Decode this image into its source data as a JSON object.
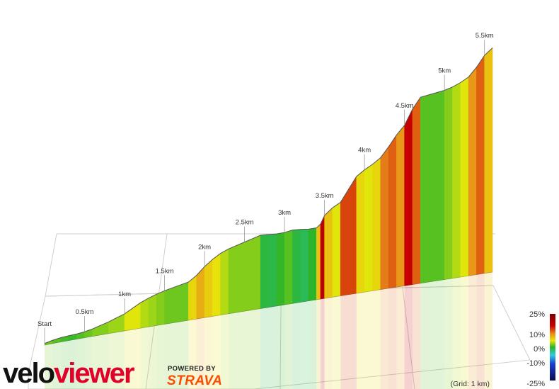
{
  "chart_data": {
    "type": "area",
    "x_unit": "km",
    "distance_markers": [
      "Start",
      "0.5km",
      "1km",
      "1.5km",
      "2km",
      "2.5km",
      "3km",
      "3.5km",
      "4km",
      "4.5km",
      "5km",
      "5.5km"
    ],
    "profile": [
      [
        0.0,
        1.5
      ],
      [
        0.1,
        3.0
      ],
      [
        0.2,
        4.0
      ],
      [
        0.3,
        4.5
      ],
      [
        0.4,
        4.8
      ],
      [
        0.5,
        5.6
      ],
      [
        0.6,
        7.0
      ],
      [
        0.7,
        9.0
      ],
      [
        0.8,
        11.0
      ],
      [
        0.9,
        13.5
      ],
      [
        1.0,
        16.0
      ],
      [
        1.1,
        20.0
      ],
      [
        1.2,
        24.0
      ],
      [
        1.3,
        27.0
      ],
      [
        1.4,
        29.5
      ],
      [
        1.5,
        31.5
      ],
      [
        1.6,
        33.0
      ],
      [
        1.7,
        34.5
      ],
      [
        1.8,
        36.0
      ],
      [
        1.9,
        41.0
      ],
      [
        2.0,
        48.0
      ],
      [
        2.1,
        53.5
      ],
      [
        2.2,
        58.0
      ],
      [
        2.3,
        61.0
      ],
      [
        2.4,
        63.0
      ],
      [
        2.5,
        65.0
      ],
      [
        2.6,
        67.0
      ],
      [
        2.7,
        69.0
      ],
      [
        2.8,
        68.5
      ],
      [
        2.9,
        67.8
      ],
      [
        3.0,
        68.0
      ],
      [
        3.1,
        69.0
      ],
      [
        3.2,
        68.5
      ],
      [
        3.3,
        67.5
      ],
      [
        3.4,
        67.5
      ],
      [
        3.45,
        70.5
      ],
      [
        3.5,
        78.0
      ],
      [
        3.6,
        84.0
      ],
      [
        3.7,
        88.0
      ],
      [
        3.8,
        99.0
      ],
      [
        3.9,
        110.0
      ],
      [
        4.0,
        115.0
      ],
      [
        4.1,
        119.0
      ],
      [
        4.2,
        124.0
      ],
      [
        4.3,
        133.0
      ],
      [
        4.4,
        143.0
      ],
      [
        4.5,
        151.0
      ],
      [
        4.6,
        165.0
      ],
      [
        4.7,
        175.0
      ],
      [
        4.8,
        176.0
      ],
      [
        4.9,
        177.0
      ],
      [
        5.0,
        178.0
      ],
      [
        5.1,
        180.0
      ],
      [
        5.2,
        183.0
      ],
      [
        5.3,
        187.0
      ],
      [
        5.4,
        195.0
      ],
      [
        5.5,
        205.0
      ],
      [
        5.6,
        211.0
      ]
    ],
    "grade_scale": {
      "labels": [
        "25%",
        "10%",
        "0%",
        "-10%",
        "-25%"
      ],
      "stops": [
        {
          "grade": 25,
          "color": "#7a0000"
        },
        {
          "grade": 16,
          "color": "#cc0000"
        },
        {
          "grade": 10,
          "color": "#e8901a"
        },
        {
          "grade": 5,
          "color": "#e8e80a"
        },
        {
          "grade": 0,
          "color": "#2ab52a"
        },
        {
          "grade": -5,
          "color": "#33c9e0"
        },
        {
          "grade": -10,
          "color": "#1a3fd0"
        },
        {
          "grade": -25,
          "color": "#0a0a50"
        }
      ]
    },
    "grid_note": "(Grid: 1 km)"
  },
  "colors": {
    "velo": "#e2002b",
    "viewer": "#e2002b",
    "strava": "#fc4c02"
  },
  "branding": {
    "velo": "velo",
    "viewer": "viewer",
    "powered_by": "POWERED BY",
    "strava": "STRAVA"
  }
}
